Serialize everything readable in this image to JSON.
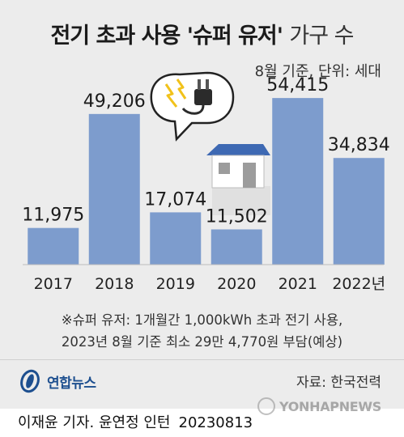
{
  "header": {
    "title_bold": "전기 초과 사용 '슈퍼 유저'",
    "title_light": "가구 수",
    "unit": "8월 기준, 단위: 세대"
  },
  "chart_data": {
    "type": "bar",
    "categories": [
      "2017",
      "2018",
      "2019",
      "2020",
      "2021",
      "2022년"
    ],
    "values": [
      11975,
      49206,
      17074,
      11502,
      54415,
      34834
    ],
    "value_labels": [
      "11,975",
      "49,206",
      "17,074",
      "11,502",
      "54,415",
      "34,834"
    ],
    "ylim": [
      0,
      60000
    ],
    "colors": {
      "bar": "#7d9ccd",
      "axis": "#bdbdbd"
    }
  },
  "note": {
    "line1": "※슈퍼 유저: 1개월간 1,000kWh 초과 전기 사용,",
    "line2": "2023년 8월 기준 최소 29만 4,770원 부담(예상)"
  },
  "footer": {
    "logo_text": "연합뉴스",
    "source": "자료: 한국전력",
    "credit": "이재윤 기자. 윤연정 인턴",
    "date": "20230813",
    "watermark": "YONHAPNEWS"
  }
}
